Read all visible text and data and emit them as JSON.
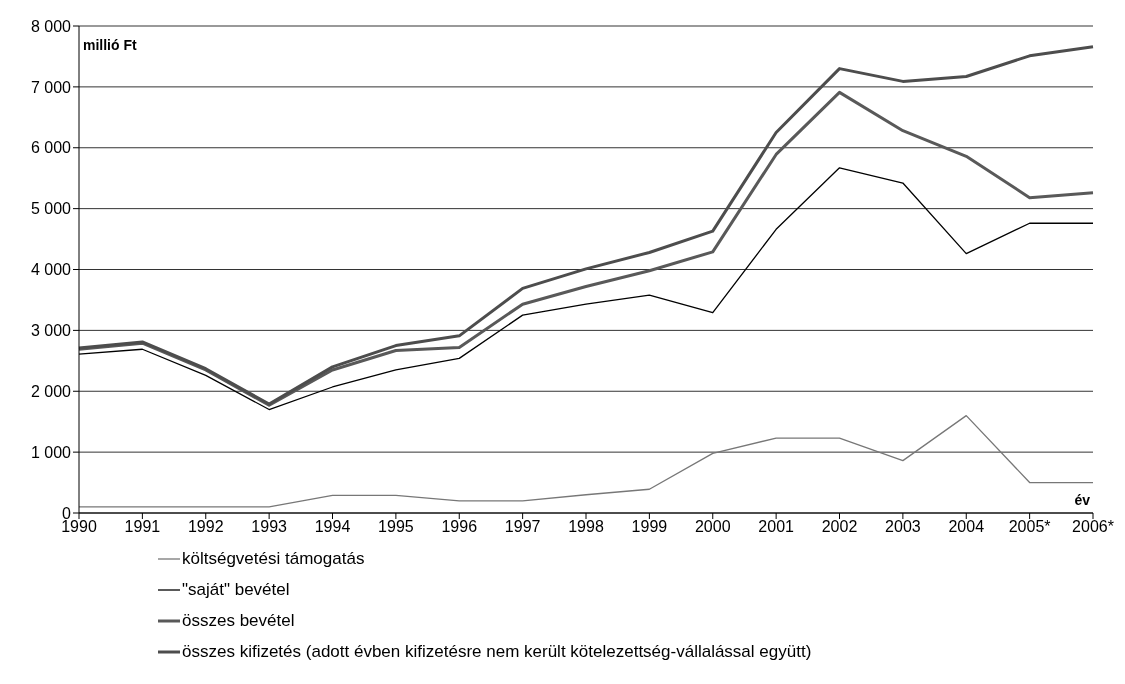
{
  "chart_data": {
    "type": "line",
    "xlabel": "év",
    "ylabel": "millió Ft",
    "categories": [
      "1990",
      "1991",
      "1992",
      "1993",
      "1994",
      "1995",
      "1996",
      "1997",
      "1998",
      "1999",
      "2000",
      "2001",
      "2002",
      "2003",
      "2004",
      "2005*",
      "2006*"
    ],
    "series": [
      {
        "name": "költségvetési támogatás",
        "color": "#777777",
        "values": [
          100,
          100,
          100,
          100,
          290,
          290,
          200,
          200,
          300,
          390,
          980,
          1230,
          1230,
          860,
          1600,
          500,
          500
        ]
      },
      {
        "name": "\"saját\" bevétel",
        "color": "#000000",
        "values": [
          2610,
          2690,
          2260,
          1700,
          2070,
          2350,
          2540,
          3250,
          3430,
          3580,
          3290,
          4660,
          5670,
          5420,
          4260,
          4760,
          4760
        ]
      },
      {
        "name": "összes bevétel",
        "color": "#595959",
        "values": [
          2690,
          2790,
          2350,
          1770,
          2350,
          2670,
          2720,
          3430,
          3720,
          3980,
          4290,
          5890,
          6910,
          6280,
          5860,
          5180,
          5260
        ]
      },
      {
        "name": "összes kifizetés (adott évben kifizetésre nem került kötelezettség-vállalással együtt)",
        "color": "#4d4d4d",
        "values": [
          2710,
          2810,
          2370,
          1790,
          2400,
          2750,
          2910,
          3690,
          4010,
          4280,
          4630,
          6250,
          7300,
          7090,
          7170,
          7510,
          7660
        ]
      }
    ],
    "ylim": [
      0,
      8000
    ],
    "yticks": [
      0,
      {
        "value": 1000,
        "label": "1 000"
      },
      {
        "value": 2000,
        "label": "2 000"
      },
      {
        "value": 3000,
        "label": "3 000"
      },
      {
        "value": 4000,
        "label": "4 000"
      },
      {
        "value": 5000,
        "label": "5 000"
      },
      {
        "value": 6000,
        "label": "6 000"
      },
      {
        "value": 7000,
        "label": "7 000"
      },
      {
        "value": 8000,
        "label": "8 000"
      }
    ],
    "grid": "y",
    "legend": "bottom",
    "marker": "none",
    "line_style": "solid"
  }
}
